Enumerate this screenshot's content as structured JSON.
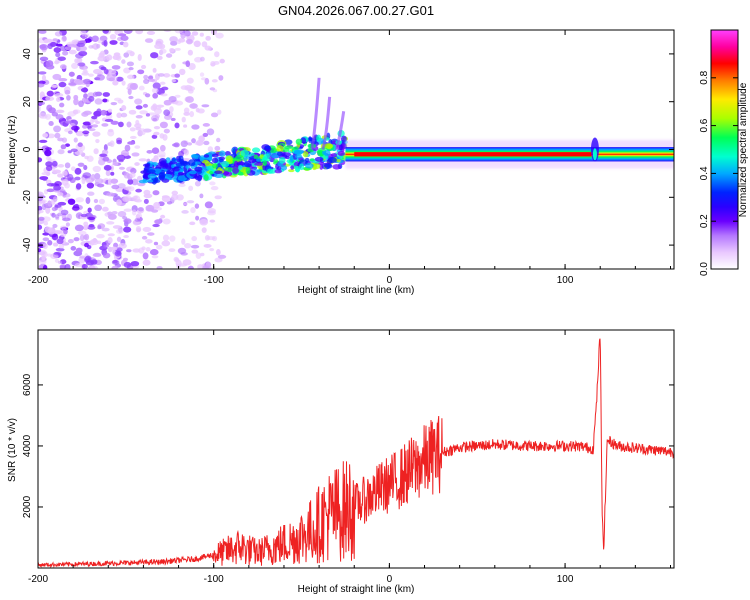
{
  "title": "GN04.2026.067.00.27.G01",
  "chart_data": [
    {
      "type": "heatmap",
      "name": "spectrogram",
      "xlabel": "Height of straight line (km)",
      "ylabel": "Frequency (Hz)",
      "xlim": [
        -200,
        162
      ],
      "ylim": [
        -50,
        50
      ],
      "xticks": [
        -200,
        -100,
        0,
        100
      ],
      "yticks": [
        -40,
        -20,
        0,
        20,
        40
      ],
      "colorbar": {
        "label": "Normalized spectral amplitude",
        "range": [
          0.0,
          1.0
        ],
        "ticks": [
          0.0,
          0.2,
          0.4,
          0.6,
          0.8
        ],
        "colors": [
          "#ffffff",
          "#e9c8ff",
          "#b477ff",
          "#6a00ff",
          "#2a00ff",
          "#0022ff",
          "#00aaff",
          "#00ffd0",
          "#00ff55",
          "#aaff00",
          "#ffea00",
          "#ff7a00",
          "#ff0000",
          "#ff00a0",
          "#ff40ff"
        ]
      },
      "features": {
        "noise_region_x": [
          -200,
          -105
        ],
        "scatter_band_x": [
          -140,
          -25
        ],
        "carrier_line_x": [
          -25,
          162
        ],
        "carrier_freq_hz": -2,
        "carrier_spike_x": 117
      }
    },
    {
      "type": "line",
      "name": "snr",
      "xlabel": "Height of straight line (km)",
      "ylabel": "SNR (10 * v/v)",
      "xlim": [
        -200,
        162
      ],
      "ylim": [
        0,
        7800
      ],
      "xticks": [
        -200,
        -100,
        0,
        100
      ],
      "yticks": [
        2000,
        4000,
        6000
      ],
      "color": "#ee2222",
      "series": [
        {
          "name": "SNR",
          "x": [
            -200,
            -160,
            -130,
            -110,
            -95,
            -85,
            -75,
            -65,
            -55,
            -45,
            -35,
            -25,
            -15,
            -5,
            5,
            15,
            25,
            40,
            60,
            80,
            100,
            110,
            116,
            118,
            120,
            121,
            122,
            124,
            130,
            145,
            162
          ],
          "y": [
            100,
            150,
            200,
            300,
            500,
            700,
            500,
            700,
            900,
            1200,
            1700,
            1900,
            2200,
            2600,
            2900,
            3300,
            3700,
            3950,
            4050,
            4000,
            4000,
            3980,
            3900,
            5500,
            7800,
            2000,
            600,
            4200,
            4000,
            3900,
            3800
          ]
        }
      ]
    }
  ]
}
